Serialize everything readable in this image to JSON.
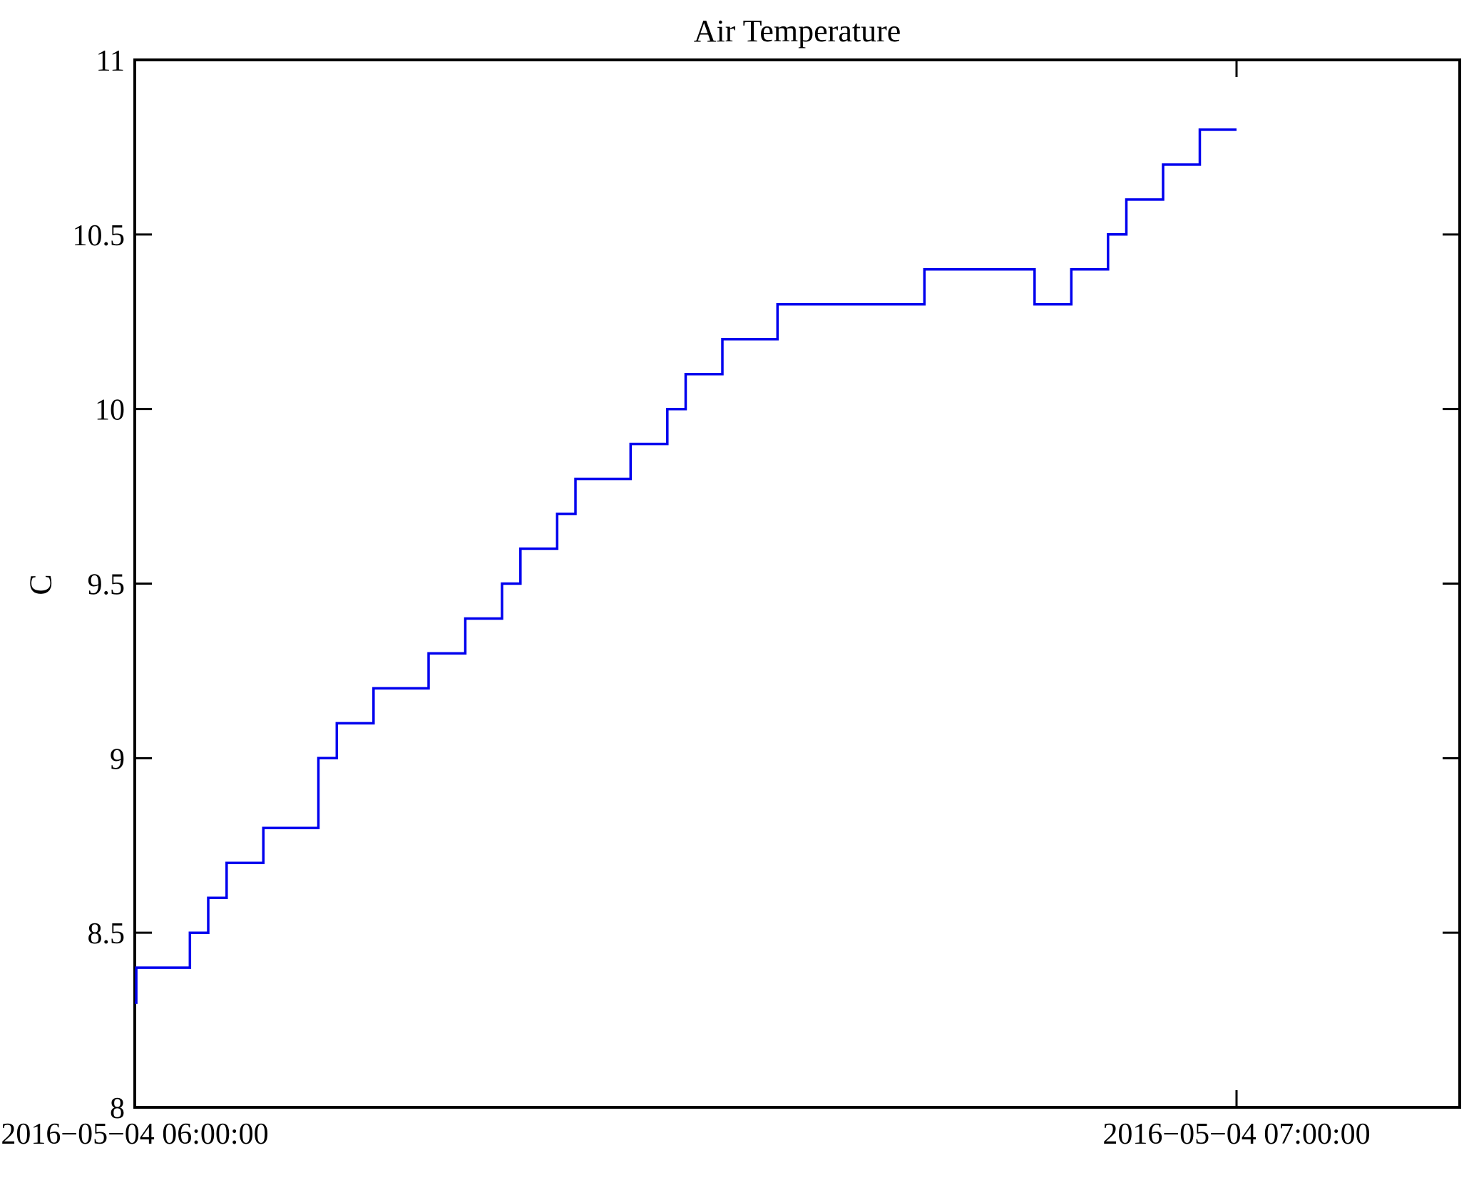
{
  "chart_data": {
    "type": "line",
    "subtype": "step-post",
    "title": "Air Temperature",
    "ylabel": "C",
    "xlabel": "",
    "grid": false,
    "legend_position": "none",
    "background_color": "#ffffff",
    "line_color": "#0000ee",
    "axis_color": "#000000",
    "ylim": [
      8,
      11
    ],
    "xlim_minutes_from_start": [
      0,
      72.16
    ],
    "y_ticks": [
      {
        "value": 11,
        "label": "11"
      },
      {
        "value": 10.5,
        "label": "10.5"
      },
      {
        "value": 10,
        "label": "10"
      },
      {
        "value": 9.5,
        "label": "9.5"
      },
      {
        "value": 9,
        "label": "9"
      },
      {
        "value": 8.5,
        "label": "8.5"
      },
      {
        "value": 8,
        "label": "8"
      }
    ],
    "x_ticks": [
      {
        "time": "06:00:00",
        "label": "2016−05−04 06:00:00"
      },
      {
        "time": "07:00:00",
        "label": "2016−05−04 07:00:00"
      }
    ],
    "series": [
      {
        "name": "Air Temperature",
        "unit": "C",
        "points": [
          [
            "06:00:00",
            8.3
          ],
          [
            "06:00:05",
            8.4
          ],
          [
            "06:03:00",
            8.5
          ],
          [
            "06:04:00",
            8.6
          ],
          [
            "06:05:00",
            8.7
          ],
          [
            "06:07:00",
            8.8
          ],
          [
            "06:10:00",
            9.0
          ],
          [
            "06:11:00",
            9.1
          ],
          [
            "06:13:00",
            9.2
          ],
          [
            "06:16:00",
            9.3
          ],
          [
            "06:18:00",
            9.4
          ],
          [
            "06:20:00",
            9.5
          ],
          [
            "06:21:00",
            9.6
          ],
          [
            "06:23:00",
            9.7
          ],
          [
            "06:24:00",
            9.8
          ],
          [
            "06:27:00",
            9.9
          ],
          [
            "06:29:00",
            10.0
          ],
          [
            "06:30:00",
            10.1
          ],
          [
            "06:32:00",
            10.2
          ],
          [
            "06:35:00",
            10.3
          ],
          [
            "06:43:00",
            10.4
          ],
          [
            "06:49:00",
            10.3
          ],
          [
            "06:51:00",
            10.4
          ],
          [
            "06:53:00",
            10.5
          ],
          [
            "06:54:00",
            10.6
          ],
          [
            "06:56:00",
            10.7
          ],
          [
            "06:58:00",
            10.8
          ],
          [
            "07:00:00",
            10.8
          ]
        ]
      }
    ]
  }
}
